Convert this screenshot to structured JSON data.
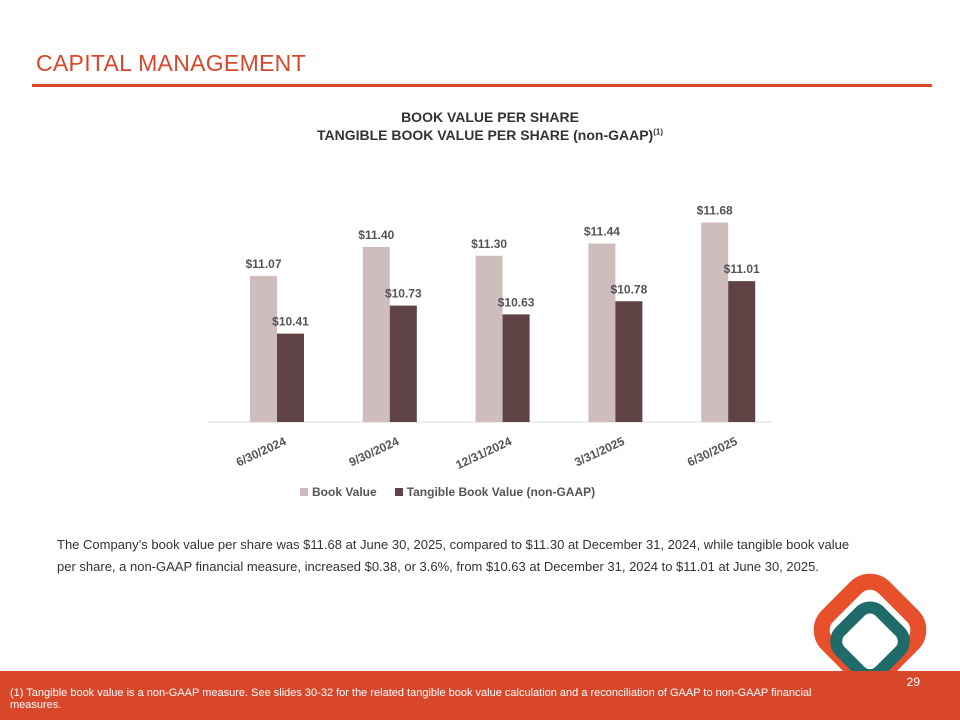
{
  "header": {
    "title": "CAPITAL MANAGEMENT"
  },
  "chart_data": {
    "type": "bar",
    "title": "BOOK VALUE PER SHARE",
    "subtitle": "TANGIBLE BOOK VALUE PER SHARE (non-GAAP)",
    "subtitle_superscript": "(1)",
    "categories": [
      "6/30/2024",
      "9/30/2024",
      "12/31/2024",
      "3/31/2025",
      "6/30/2025"
    ],
    "series": [
      {
        "name": "Book Value",
        "color": "#cfbcbc",
        "values": [
          11.07,
          11.4,
          11.3,
          11.44,
          11.68
        ],
        "labels": [
          "$11.07",
          "$11.40",
          "$11.30",
          "$11.44",
          "$11.68"
        ]
      },
      {
        "name": "Tangible Book Value (non-GAAP)",
        "color": "#5f4244",
        "values": [
          10.41,
          10.73,
          10.63,
          10.78,
          11.01
        ],
        "labels": [
          "$10.41",
          "$10.73",
          "$10.63",
          "$10.78",
          "$11.01"
        ]
      }
    ],
    "ylim": [
      9.4,
      11.9
    ],
    "grid": false,
    "legend": "bottom"
  },
  "body": {
    "text": "The Company’s book value per share was $11.68 at June 30, 2025, compared to $11.30 at December 31, 2024, while tangible book value per share, a non-GAAP financial measure, increased $0.38, or 3.6%, from $10.63 at December 31, 2024 to $11.01 at June 30, 2025."
  },
  "footer": {
    "footnote": "(1) Tangible book value is a non-GAAP measure.  See slides 30-32 for the related tangible book value calculation and a reconciliation of GAAP to non-GAAP financial measures.",
    "page_number": "29"
  },
  "colors": {
    "accent": "#d9472b",
    "logo_orange": "#e8502c",
    "logo_teal": "#1f6b6a"
  }
}
